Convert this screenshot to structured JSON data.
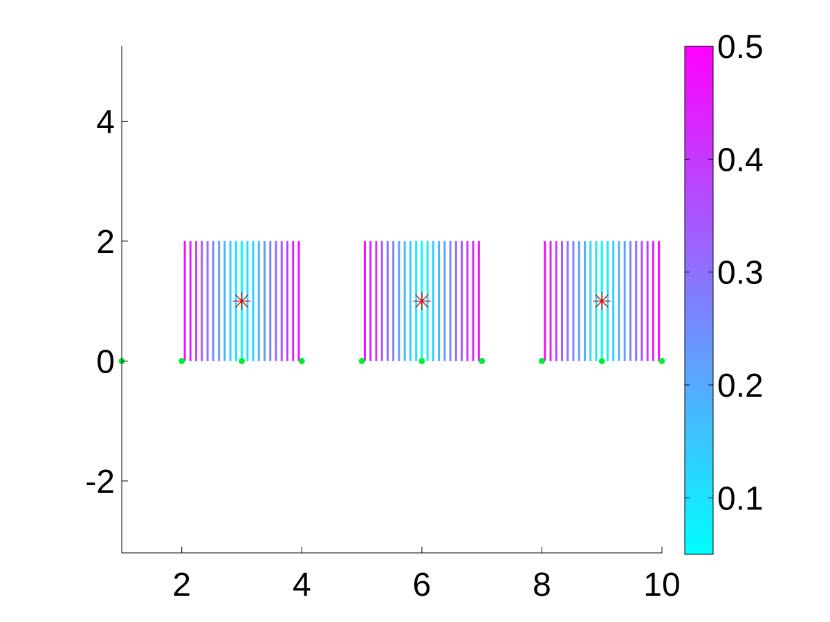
{
  "chart_data": {
    "type": "line",
    "title": "",
    "xlabel": "",
    "ylabel": "",
    "xlim": [
      1,
      10
    ],
    "ylim": [
      -3.2,
      5.25
    ],
    "x_ticks": [
      2,
      4,
      6,
      8,
      10
    ],
    "x_tick_labels": [
      "2",
      "4",
      "6",
      "8",
      "10"
    ],
    "y_ticks": [
      -2,
      0,
      2,
      4
    ],
    "y_tick_labels": [
      "-2",
      "0",
      "2",
      "4"
    ],
    "grid": false,
    "legend": "none",
    "segment_y_range": [
      0,
      2
    ],
    "groups": [
      {
        "x_start": 2,
        "x_end": 4,
        "center": [
          3,
          1
        ]
      },
      {
        "x_start": 5,
        "x_end": 7,
        "center": [
          6,
          1
        ]
      },
      {
        "x_start": 8,
        "x_end": 10,
        "center": [
          9,
          1
        ]
      }
    ],
    "segments_per_group": 21,
    "segment_value_rule": "value = 0.05 + |x - center_x| * 0.45",
    "points": [
      {
        "x": 1,
        "y": 0
      },
      {
        "x": 2,
        "y": 0
      },
      {
        "x": 3,
        "y": 0
      },
      {
        "x": 4,
        "y": 0
      },
      {
        "x": 5,
        "y": 0
      },
      {
        "x": 6,
        "y": 0
      },
      {
        "x": 7,
        "y": 0
      },
      {
        "x": 8,
        "y": 0
      },
      {
        "x": 9,
        "y": 0
      },
      {
        "x": 10,
        "y": 0
      }
    ],
    "centers": [
      {
        "x": 3,
        "y": 1
      },
      {
        "x": 6,
        "y": 1
      },
      {
        "x": 9,
        "y": 1
      }
    ],
    "colorbar": {
      "min": 0.05,
      "max": 0.5,
      "ticks": [
        0.1,
        0.2,
        0.3,
        0.4,
        0.5
      ],
      "tick_labels": [
        "0.1",
        "0.2",
        "0.3",
        "0.4",
        "0.5"
      ],
      "colormap": "cool",
      "color_low": "#00ffff",
      "color_high": "#ff00ff"
    },
    "colors": {
      "point": "#00ee33",
      "center_marker": "#dd0000",
      "axis": "#000000"
    }
  }
}
